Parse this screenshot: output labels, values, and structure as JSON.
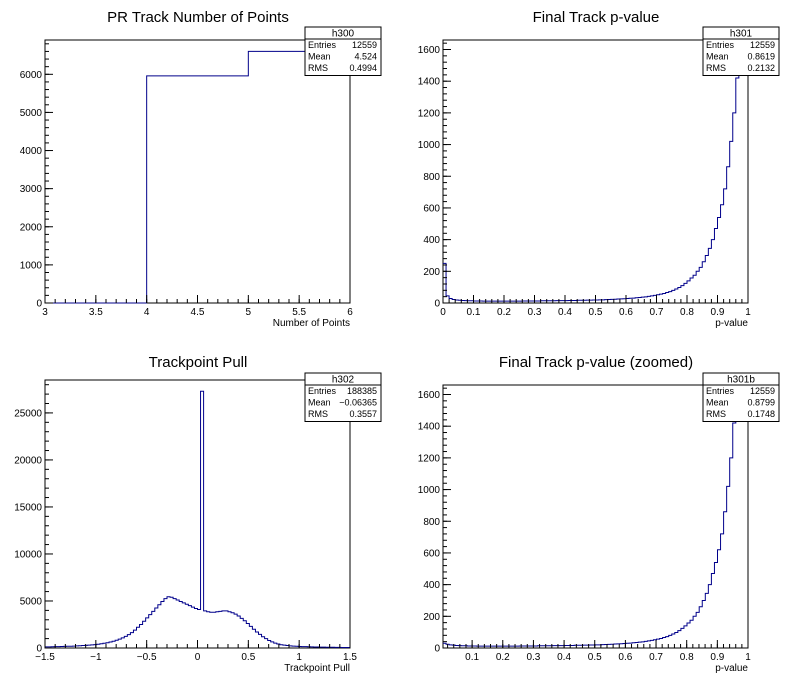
{
  "chart_data": [
    {
      "type": "histogram",
      "title": "PR Track Number of Points",
      "xlabel": "Number of Points",
      "ylabel": "",
      "xlim": [
        3,
        6
      ],
      "ylim": [
        0,
        6900
      ],
      "xticks": [
        "3",
        "3.5",
        "4",
        "4.5",
        "5",
        "5.5",
        "6"
      ],
      "yticks": [
        "0",
        "1000",
        "2000",
        "3000",
        "4000",
        "5000",
        "6000"
      ],
      "bins": [
        {
          "x0": 3,
          "x1": 4,
          "y": 0
        },
        {
          "x0": 4,
          "x1": 5,
          "y": 5960
        },
        {
          "x0": 5,
          "x1": 6,
          "y": 6600
        }
      ],
      "line_color": "#00008b",
      "stats": {
        "name": "h300",
        "rows": [
          [
            "Entries",
            "12559"
          ],
          [
            "Mean",
            "4.524"
          ],
          [
            "RMS",
            "0.4994"
          ]
        ]
      }
    },
    {
      "type": "histogram",
      "title": "Final Track p-value",
      "xlabel": "p-value",
      "ylabel": "",
      "xlim": [
        0,
        1
      ],
      "ylim": [
        0,
        1660
      ],
      "xticks": [
        "0",
        "0.1",
        "0.2",
        "0.3",
        "0.4",
        "0.5",
        "0.6",
        "0.7",
        "0.8",
        "0.9",
        "1"
      ],
      "yticks": [
        "0",
        "200",
        "400",
        "600",
        "800",
        "1000",
        "1200",
        "1400",
        "1600"
      ],
      "bin_edges": [
        0,
        1
      ],
      "values": [
        250,
        45,
        28,
        22,
        19,
        17,
        16,
        15,
        14,
        14,
        13,
        13,
        13,
        12,
        12,
        12,
        12,
        12,
        12,
        12,
        12,
        12,
        12,
        12,
        12,
        12,
        13,
        13,
        13,
        13,
        13,
        13,
        14,
        14,
        14,
        14,
        14,
        15,
        15,
        15,
        15,
        16,
        16,
        16,
        17,
        17,
        17,
        18,
        18,
        19,
        19,
        20,
        20,
        21,
        22,
        23,
        24,
        25,
        26,
        27,
        28,
        30,
        31,
        33,
        35,
        37,
        39,
        42,
        45,
        48,
        52,
        56,
        60,
        66,
        72,
        80,
        88,
        98,
        110,
        124,
        140,
        158,
        175,
        200,
        225,
        260,
        300,
        345,
        400,
        470,
        540,
        620,
        720,
        860,
        1020,
        1200,
        1420,
        1640,
        1660,
        1660
      ],
      "line_color": "#00008b",
      "stats": {
        "name": "h301",
        "rows": [
          [
            "Entries",
            "12559"
          ],
          [
            "Mean",
            "0.8619"
          ],
          [
            "RMS",
            "0.2132"
          ]
        ]
      }
    },
    {
      "type": "histogram",
      "title": "Trackpoint Pull",
      "xlabel": "Trackpoint Pull",
      "ylabel": "",
      "xlim": [
        -1.5,
        1.5
      ],
      "ylim": [
        0,
        28500
      ],
      "xticks": [
        "−1.5",
        "−1",
        "−0.5",
        "0",
        "0.5",
        "1",
        "1.5"
      ],
      "yticks": [
        "0",
        "5000",
        "10000",
        "15000",
        "20000",
        "25000"
      ],
      "bin_edges": [
        -1.5,
        1.5
      ],
      "values": [
        120,
        120,
        130,
        140,
        150,
        160,
        170,
        180,
        190,
        200,
        220,
        240,
        260,
        280,
        300,
        330,
        360,
        400,
        450,
        500,
        560,
        640,
        720,
        820,
        940,
        1080,
        1240,
        1420,
        1640,
        1900,
        2200,
        2500,
        2850,
        3200,
        3550,
        3900,
        4250,
        4600,
        4950,
        5250,
        5450,
        5400,
        5250,
        5100,
        4950,
        4800,
        4650,
        4500,
        4350,
        4200,
        4100,
        27300,
        3950,
        3850,
        3800,
        3800,
        3850,
        3900,
        3950,
        3950,
        3850,
        3750,
        3600,
        3400,
        3150,
        2900,
        2600,
        2300,
        2000,
        1700,
        1450,
        1200,
        1000,
        800,
        650,
        520,
        420,
        350,
        300,
        260,
        230,
        200,
        180,
        160,
        150,
        140,
        130,
        120,
        110,
        100,
        95,
        90,
        85,
        80,
        75,
        70,
        65,
        60,
        55,
        50
      ],
      "line_color": "#00008b",
      "stats": {
        "name": "h302",
        "rows": [
          [
            "Entries",
            "188385"
          ],
          [
            "Mean",
            "−0.06365"
          ],
          [
            "RMS",
            "0.3557"
          ]
        ]
      }
    },
    {
      "type": "histogram",
      "title": "Final Track p-value (zoomed)",
      "xlabel": "p-value",
      "ylabel": "",
      "xlim": [
        0.005,
        1
      ],
      "ylim": [
        0,
        1660
      ],
      "xticks": [
        "0.1",
        "0.2",
        "0.3",
        "0.4",
        "0.5",
        "0.6",
        "0.7",
        "0.8",
        "0.9",
        "1"
      ],
      "yticks": [
        "0",
        "200",
        "400",
        "600",
        "800",
        "1000",
        "1200",
        "1400",
        "1600"
      ],
      "bin_edges": [
        0.005,
        1
      ],
      "values": [
        30,
        24,
        20,
        18,
        16,
        15,
        14,
        14,
        13,
        13,
        13,
        12,
        12,
        12,
        12,
        12,
        12,
        12,
        12,
        12,
        12,
        12,
        12,
        12,
        12,
        13,
        13,
        13,
        13,
        13,
        13,
        14,
        14,
        14,
        14,
        14,
        15,
        15,
        15,
        15,
        16,
        16,
        16,
        17,
        17,
        17,
        18,
        18,
        19,
        19,
        20,
        20,
        21,
        22,
        23,
        24,
        25,
        26,
        27,
        28,
        30,
        31,
        33,
        35,
        37,
        39,
        42,
        45,
        48,
        52,
        56,
        60,
        66,
        72,
        80,
        88,
        98,
        110,
        124,
        140,
        158,
        175,
        200,
        225,
        260,
        300,
        345,
        400,
        470,
        540,
        620,
        720,
        860,
        1020,
        1200,
        1420,
        1640,
        1660,
        1660,
        1660
      ],
      "line_color": "#00008b",
      "stats": {
        "name": "h301b",
        "rows": [
          [
            "Entries",
            "12559"
          ],
          [
            "Mean",
            "0.8799"
          ],
          [
            "RMS",
            "0.1748"
          ]
        ]
      }
    }
  ]
}
